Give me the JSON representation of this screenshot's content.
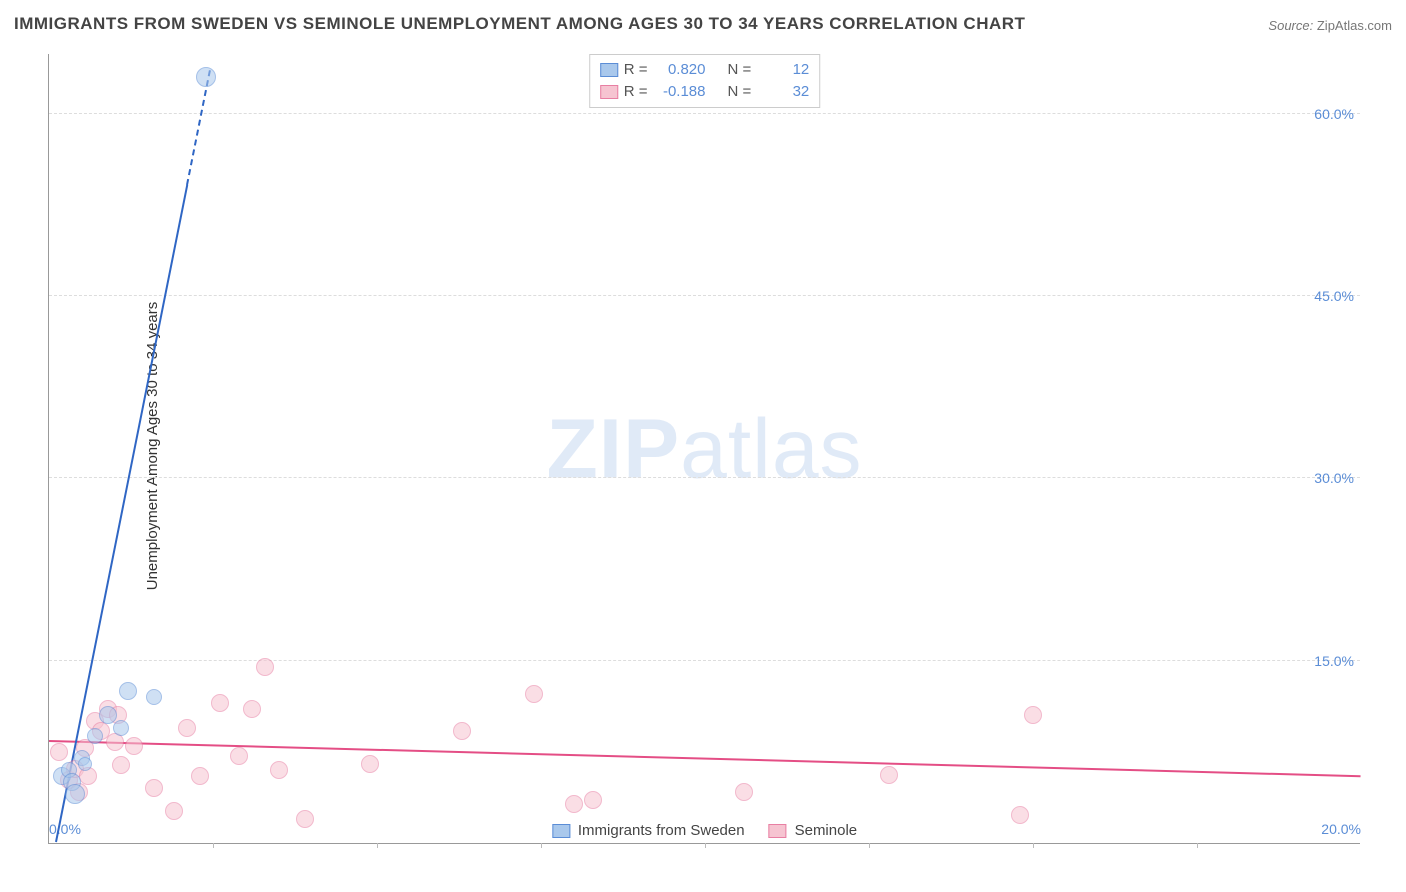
{
  "title": "IMMIGRANTS FROM SWEDEN VS SEMINOLE UNEMPLOYMENT AMONG AGES 30 TO 34 YEARS CORRELATION CHART",
  "source_label": "Source:",
  "source_value": "ZipAtlas.com",
  "ylabel": "Unemployment Among Ages 30 to 34 years",
  "watermark_bold": "ZIP",
  "watermark_rest": "atlas",
  "chart": {
    "type": "scatter",
    "xlim": [
      0.0,
      20.0
    ],
    "ylim": [
      0.0,
      65.0
    ],
    "y_ticks": [
      15.0,
      30.0,
      45.0,
      60.0
    ],
    "y_tick_labels": [
      "15.0%",
      "30.0%",
      "45.0%",
      "60.0%"
    ],
    "x_ticks_minor": [
      2.5,
      5.0,
      7.5,
      10.0,
      12.5,
      15.0,
      17.5
    ],
    "x_tick_labels": [
      {
        "x": 0.0,
        "label": "0.0%",
        "pos": "first"
      },
      {
        "x": 20.0,
        "label": "20.0%",
        "pos": "last"
      }
    ],
    "grid_color": "#dddddd",
    "axis_color": "#999999",
    "tick_label_color": "#5b8dd6",
    "background_color": "#ffffff"
  },
  "series": {
    "blue": {
      "name": "Immigrants from Sweden",
      "fill": "#a9c8ec",
      "stroke": "#5b8dd6",
      "fill_opacity": 0.55,
      "line_color": "#2f66c4",
      "r_value": "0.820",
      "n_value": "12",
      "points": [
        {
          "x": 0.2,
          "y": 5.5,
          "r": 9
        },
        {
          "x": 0.3,
          "y": 6.0,
          "r": 8
        },
        {
          "x": 0.35,
          "y": 5.0,
          "r": 9
        },
        {
          "x": 0.4,
          "y": 4.0,
          "r": 10
        },
        {
          "x": 0.5,
          "y": 7.0,
          "r": 8
        },
        {
          "x": 0.55,
          "y": 6.5,
          "r": 7
        },
        {
          "x": 0.7,
          "y": 8.8,
          "r": 8
        },
        {
          "x": 0.9,
          "y": 10.5,
          "r": 9
        },
        {
          "x": 1.1,
          "y": 9.5,
          "r": 8
        },
        {
          "x": 1.2,
          "y": 12.5,
          "r": 9
        },
        {
          "x": 1.6,
          "y": 12.0,
          "r": 8
        },
        {
          "x": 2.4,
          "y": 63.0,
          "r": 10
        }
      ],
      "trend": {
        "x1": 0.1,
        "y1": 0.0,
        "x2": 2.45,
        "y2": 63.5,
        "dash_from_x": 2.1
      }
    },
    "pink": {
      "name": "Seminole",
      "fill": "#f6c4d1",
      "stroke": "#e87fa3",
      "fill_opacity": 0.55,
      "line_color": "#e44e85",
      "r_value": "-0.188",
      "n_value": "32",
      "points": [
        {
          "x": 0.15,
          "y": 7.5,
          "r": 9
        },
        {
          "x": 0.3,
          "y": 5.2,
          "r": 9
        },
        {
          "x": 0.4,
          "y": 6.1,
          "r": 9
        },
        {
          "x": 0.45,
          "y": 4.2,
          "r": 9
        },
        {
          "x": 0.55,
          "y": 7.8,
          "r": 9
        },
        {
          "x": 0.6,
          "y": 5.5,
          "r": 9
        },
        {
          "x": 0.7,
          "y": 10.0,
          "r": 9
        },
        {
          "x": 0.8,
          "y": 9.2,
          "r": 9
        },
        {
          "x": 0.9,
          "y": 11.0,
          "r": 9
        },
        {
          "x": 1.0,
          "y": 8.3,
          "r": 9
        },
        {
          "x": 1.05,
          "y": 10.5,
          "r": 9
        },
        {
          "x": 1.1,
          "y": 6.4,
          "r": 9
        },
        {
          "x": 1.3,
          "y": 8.0,
          "r": 9
        },
        {
          "x": 1.6,
          "y": 4.5,
          "r": 9
        },
        {
          "x": 1.9,
          "y": 2.6,
          "r": 9
        },
        {
          "x": 2.1,
          "y": 9.5,
          "r": 9
        },
        {
          "x": 2.3,
          "y": 5.5,
          "r": 9
        },
        {
          "x": 2.6,
          "y": 11.5,
          "r": 9
        },
        {
          "x": 2.9,
          "y": 7.2,
          "r": 9
        },
        {
          "x": 3.1,
          "y": 11.0,
          "r": 9
        },
        {
          "x": 3.3,
          "y": 14.5,
          "r": 9
        },
        {
          "x": 3.5,
          "y": 6.0,
          "r": 9
        },
        {
          "x": 3.9,
          "y": 2.0,
          "r": 9
        },
        {
          "x": 4.9,
          "y": 6.5,
          "r": 9
        },
        {
          "x": 6.3,
          "y": 9.2,
          "r": 9
        },
        {
          "x": 7.4,
          "y": 12.3,
          "r": 9
        },
        {
          "x": 8.0,
          "y": 3.2,
          "r": 9
        },
        {
          "x": 8.3,
          "y": 3.5,
          "r": 9
        },
        {
          "x": 10.6,
          "y": 4.2,
          "r": 9
        },
        {
          "x": 12.8,
          "y": 5.6,
          "r": 9
        },
        {
          "x": 14.8,
          "y": 2.3,
          "r": 9
        },
        {
          "x": 15.0,
          "y": 10.5,
          "r": 9
        }
      ],
      "trend": {
        "x1": 0.0,
        "y1": 8.3,
        "x2": 20.0,
        "y2": 5.4
      }
    }
  },
  "legend_top": {
    "r_label": "R  =",
    "n_label": "N  ="
  },
  "legend_bottom": [
    {
      "key": "blue"
    },
    {
      "key": "pink"
    }
  ]
}
